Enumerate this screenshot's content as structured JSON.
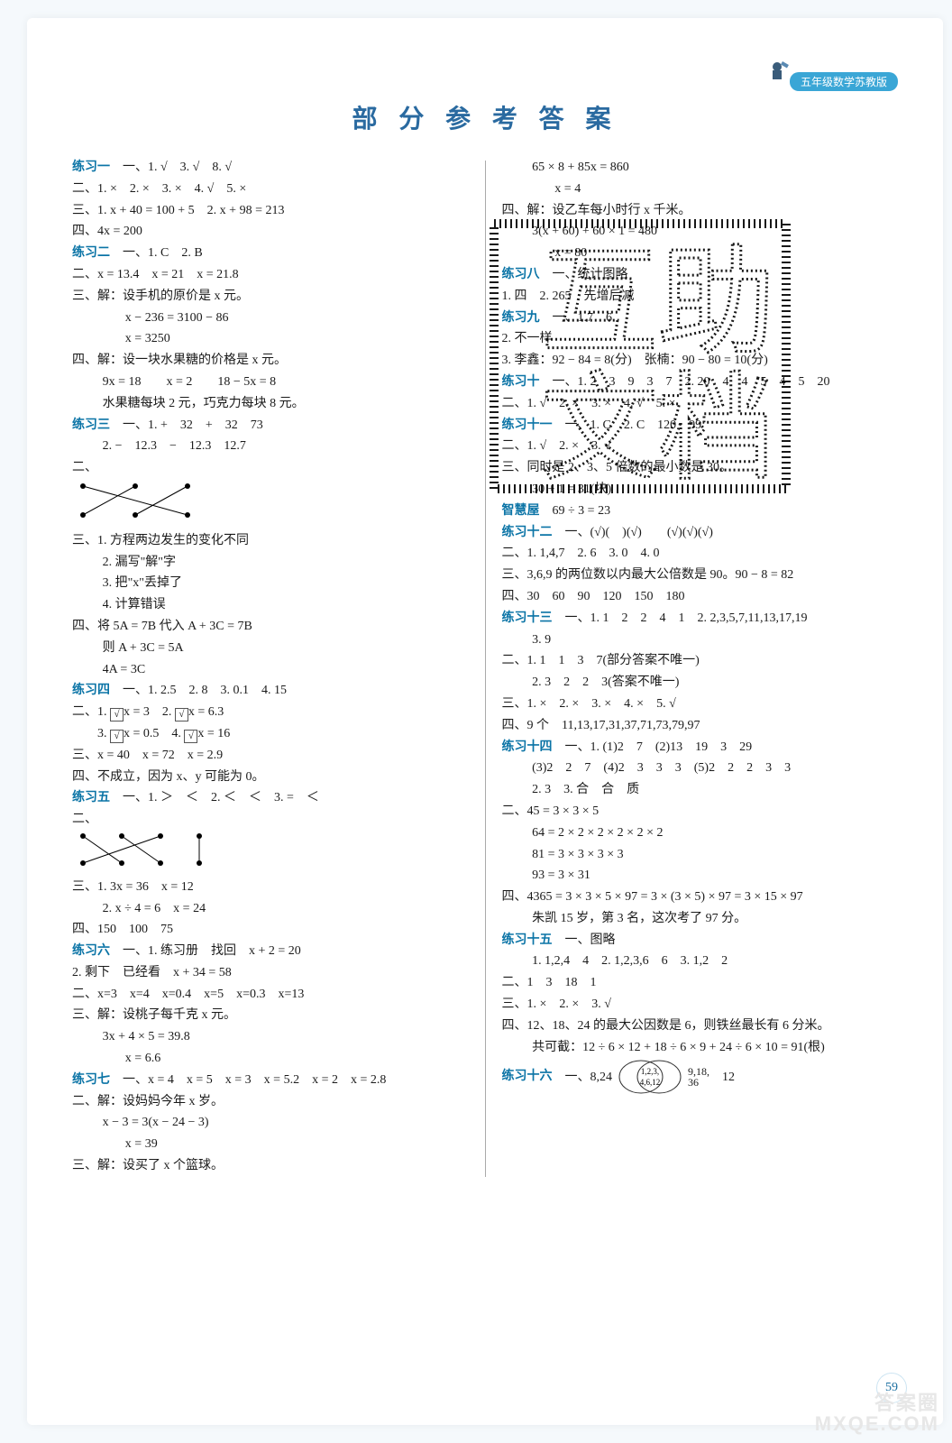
{
  "meta": {
    "title_text": "部 分 参 考 答 案",
    "grade_tag": "五年级数学苏教版",
    "page_number": "59",
    "watermark_line1": "答案圈",
    "watermark_line2": "MXQE.COM"
  },
  "colors": {
    "page_bg": "#f5f9fc",
    "sheet_bg": "#ffffff",
    "title_color": "#2a6aa0",
    "label_blue": "#0b74a6",
    "tag_bg": "#3aa6d6",
    "text": "#1a1a1a",
    "watermark": "#e7e7e7"
  },
  "left": [
    {
      "t": "label",
      "v": "练习一"
    },
    {
      "t": "text",
      "v": "　一、1. √　3. √　8. √"
    },
    {
      "t": "line",
      "v": "二、1. ×　2. ×　3. ×　4. √　5. ×"
    },
    {
      "t": "line",
      "v": "三、1. x + 40 = 100 + 5　2. x + 98 = 213"
    },
    {
      "t": "line",
      "v": "四、4x = 200"
    },
    {
      "t": "label",
      "v": "练习二"
    },
    {
      "t": "text",
      "v": "　一、1. C　2. B"
    },
    {
      "t": "line",
      "v": "二、x = 13.4　x = 21　x = 21.8"
    },
    {
      "t": "line",
      "v": "三、解：设手机的原价是 x 元。"
    },
    {
      "t": "indent2",
      "v": "x − 236 = 3100 − 86"
    },
    {
      "t": "indent2",
      "v": "x = 3250"
    },
    {
      "t": "line",
      "v": "四、解：设一块水果糖的价格是 x 元。"
    },
    {
      "t": "indent",
      "v": "9x = 18　　x = 2　　18 − 5x = 8"
    },
    {
      "t": "indent",
      "v": "水果糖每块 2 元，巧克力每块 8 元。"
    },
    {
      "t": "label",
      "v": "练习三"
    },
    {
      "t": "text",
      "v": "　一、1. +　32　+　32　73"
    },
    {
      "t": "indent",
      "v": "2. −　12.3　−　12.3　12.7"
    },
    {
      "t": "line",
      "v": "二、"
    },
    {
      "t": "xcross1"
    },
    {
      "t": "line",
      "v": "三、1. 方程两边发生的变化不同"
    },
    {
      "t": "indent",
      "v": "2. 漏写\"解\"字"
    },
    {
      "t": "indent",
      "v": "3. 把\"x\"丢掉了"
    },
    {
      "t": "indent",
      "v": "4. 计算错误"
    },
    {
      "t": "line",
      "v": "四、将 5A = 7B 代入 A + 3C = 7B"
    },
    {
      "t": "indent",
      "v": "则 A + 3C = 5A"
    },
    {
      "t": "indent",
      "v": "4A = 3C"
    },
    {
      "t": "label",
      "v": "练习四"
    },
    {
      "t": "text",
      "v": "　一、1. 2.5　2. 8　3. 0.1　4. 15"
    },
    {
      "t": "boxline",
      "seg": [
        "二、1.",
        "√",
        "x = 3　2.",
        "√",
        "x = 6.3"
      ]
    },
    {
      "t": "boxline",
      "seg": [
        "　　3.",
        "√",
        "x = 0.5　4.",
        "√",
        "x = 16"
      ]
    },
    {
      "t": "line",
      "v": "三、x = 40　x = 72　x = 2.9"
    },
    {
      "t": "line",
      "v": "四、不成立，因为 x、y 可能为 0。"
    },
    {
      "t": "label",
      "v": "练习五"
    },
    {
      "t": "text",
      "v": "　一、1. ＞　＜　2. ＜　＜　3. =　＜"
    },
    {
      "t": "line",
      "v": "二、"
    },
    {
      "t": "xcross2"
    },
    {
      "t": "line",
      "v": "三、1. 3x = 36　x = 12"
    },
    {
      "t": "indent",
      "v": "2. x ÷ 4 = 6　x = 24"
    },
    {
      "t": "line",
      "v": "四、150　100　75"
    },
    {
      "t": "label",
      "v": "练习六"
    },
    {
      "t": "text",
      "v": "　一、1. 练习册　找回　x + 2 = 20"
    },
    {
      "t": "line",
      "v": "2. 剩下　已经看　x + 34 = 58"
    },
    {
      "t": "line",
      "v": "二、x=3　x=4　x=0.4　x=5　x=0.3　x=13"
    },
    {
      "t": "line",
      "v": "三、解：设桃子每千克 x 元。"
    },
    {
      "t": "indent",
      "v": "3x + 4 × 5 = 39.8"
    },
    {
      "t": "indent2",
      "v": "x = 6.6"
    },
    {
      "t": "label",
      "v": "练习七"
    },
    {
      "t": "text",
      "v": "　一、x = 4　x = 5　x = 3　x = 5.2　x = 2　x = 2.8"
    },
    {
      "t": "line",
      "v": "二、解：设妈妈今年 x 岁。"
    },
    {
      "t": "indent",
      "v": "x − 3 = 3(x − 24 − 3)"
    },
    {
      "t": "indent2",
      "v": "x = 39"
    },
    {
      "t": "line",
      "v": "三、解：设买了 x 个篮球。"
    }
  ],
  "right": [
    {
      "t": "indent",
      "v": "65 × 8 + 85x = 860"
    },
    {
      "t": "indent2",
      "v": "x = 4"
    },
    {
      "t": "line",
      "v": "四、解：设乙车每小时行 x 千米。"
    },
    {
      "t": "indent",
      "v": "3(x + 60) + 60 × 1 = 480"
    },
    {
      "t": "indent2",
      "v": "x = 80"
    },
    {
      "t": "label",
      "v": "练习八"
    },
    {
      "t": "text",
      "v": "　一、统计图略"
    },
    {
      "t": "line",
      "v": "1. 四　2. 265　先增后减"
    },
    {
      "t": "label",
      "v": "练习九"
    },
    {
      "t": "text",
      "v": "　一、1.7　6"
    },
    {
      "t": "line",
      "v": "2. 不一样"
    },
    {
      "t": "line",
      "v": "3. 李鑫：92 − 84 = 8(分)　张楠：90 − 80 = 10(分)"
    },
    {
      "t": "label",
      "v": "练习十"
    },
    {
      "t": "text",
      "v": "　一、1. 2　3　9　3　7　2. 20　4　4　5　4　5　20"
    },
    {
      "t": "line",
      "v": "二、1. √　2. ×　3. ×　4. √　5. ×"
    },
    {
      "t": "label",
      "v": "练习十一"
    },
    {
      "t": "text",
      "v": "　一、1. C　2. C　120　99"
    },
    {
      "t": "line",
      "v": "二、1. √　2. ×　3. √"
    },
    {
      "t": "line",
      "v": "三、同时是 2、3、5 倍数的最小数是 30。"
    },
    {
      "t": "indent",
      "v": "30 + 1 = 31(块)"
    },
    {
      "t": "label",
      "v": "智慧屋"
    },
    {
      "t": "text",
      "v": "　69 ÷ 3 = 23"
    },
    {
      "t": "label",
      "v": "练习十二"
    },
    {
      "t": "text",
      "v": "　一、(√)(　)(√)　　(√)(√)(√)"
    },
    {
      "t": "line",
      "v": "二、1. 1,4,7　2. 6　3. 0　4. 0"
    },
    {
      "t": "line",
      "v": "三、3,6,9 的两位数以内最大公倍数是 90。90 − 8 = 82"
    },
    {
      "t": "line",
      "v": "四、30　60　90　120　150　180"
    },
    {
      "t": "label",
      "v": "练习十三"
    },
    {
      "t": "text",
      "v": "　一、1. 1　2　2　4　1　2. 2,3,5,7,11,13,17,19"
    },
    {
      "t": "indent",
      "v": "3. 9"
    },
    {
      "t": "line",
      "v": "二、1. 1　1　3　7(部分答案不唯一)"
    },
    {
      "t": "indent",
      "v": "2. 3　2　2　3(答案不唯一)"
    },
    {
      "t": "line",
      "v": "三、1. ×　2. ×　3. ×　4. ×　5. √"
    },
    {
      "t": "line",
      "v": "四、9 个　11,13,17,31,37,71,73,79,97"
    },
    {
      "t": "label",
      "v": "练习十四"
    },
    {
      "t": "text",
      "v": "　一、1. (1)2　7　(2)13　19　3　29"
    },
    {
      "t": "indent",
      "v": "(3)2　2　7　(4)2　3　3　3　(5)2　2　2　3　3"
    },
    {
      "t": "indent",
      "v": "2. 3　3. 合　合　质"
    },
    {
      "t": "line",
      "v": "二、45 = 3 × 3 × 5"
    },
    {
      "t": "indent",
      "v": "64 = 2 × 2 × 2 × 2 × 2 × 2"
    },
    {
      "t": "indent",
      "v": "81 = 3 × 3 × 3 × 3"
    },
    {
      "t": "indent",
      "v": "93 = 3 × 31"
    },
    {
      "t": "line",
      "v": "四、4365 = 3 × 3 × 5 × 97 = 3 × (3 × 5) × 97 = 3 × 15 × 97"
    },
    {
      "t": "indent",
      "v": "朱凯 15 岁，第 3 名，这次考了 97 分。"
    },
    {
      "t": "label",
      "v": "练习十五"
    },
    {
      "t": "text",
      "v": "　一、图略"
    },
    {
      "t": "indent",
      "v": "1. 1,2,4　4　2. 1,2,3,6　6　3. 1,2　2"
    },
    {
      "t": "line",
      "v": "二、1　3　18　1"
    },
    {
      "t": "line",
      "v": "三、1. ×　2. ×　3. √"
    },
    {
      "t": "line",
      "v": "四、12、18、24 的最大公因数是 6，则铁丝最长有 6 分米。"
    },
    {
      "t": "indent",
      "v": "共可截：12 ÷ 6 × 12 + 18 ÷ 6 × 9 + 24 ÷ 6 × 10 = 91(根)"
    },
    {
      "t": "label",
      "v": "练习十六"
    },
    {
      "t": "venn"
    }
  ],
  "venn": {
    "left_label": "8,24",
    "center_labels": "1,2,3,",
    "center_labels2": "4,6,12",
    "right_label": "9,18,",
    "right_label2": "36",
    "tail": "12"
  }
}
